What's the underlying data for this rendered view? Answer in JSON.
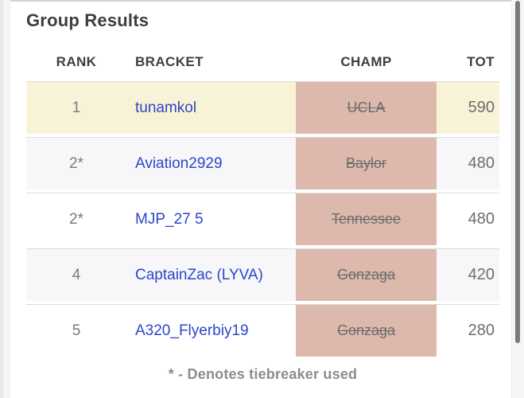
{
  "page": {
    "title": "Group Results",
    "footnote": "* - Denotes tiebreaker used"
  },
  "table": {
    "columns": [
      {
        "key": "rank",
        "label": "RANK"
      },
      {
        "key": "bracket",
        "label": "BRACKET"
      },
      {
        "key": "champ",
        "label": "CHAMP"
      },
      {
        "key": "tot",
        "label": "TOT"
      }
    ],
    "rows": [
      {
        "rank": "1",
        "bracket": "tunamkol",
        "champ": "UCLA",
        "champ_eliminated": true,
        "tot": "590",
        "highlight": true
      },
      {
        "rank": "2*",
        "bracket": "Aviation2929",
        "champ": "Baylor",
        "champ_eliminated": true,
        "tot": "480",
        "highlight": false
      },
      {
        "rank": "2*",
        "bracket": "MJP_27 5",
        "champ": "Tennessee",
        "champ_eliminated": true,
        "tot": "480",
        "highlight": false
      },
      {
        "rank": "4",
        "bracket": "CaptainZac (LYVA)",
        "champ": "Gonzaga",
        "champ_eliminated": true,
        "tot": "420",
        "highlight": false
      },
      {
        "rank": "5",
        "bracket": "A320_Flyerbiy19",
        "champ": "Gonzaga",
        "champ_eliminated": true,
        "tot": "280",
        "highlight": false
      }
    ]
  },
  "colors": {
    "highlight_row": "#f8f3d6",
    "alt_row": "#f7f7f9",
    "plain_row": "#ffffff",
    "champ_cell": "#dcb9ac",
    "link": "#2b46c8",
    "eliminated_text": "#6b6b6b",
    "separator": "#dcdcdc",
    "heading_text": "#3b3e42",
    "footnote_text": "#8d8d8d"
  }
}
